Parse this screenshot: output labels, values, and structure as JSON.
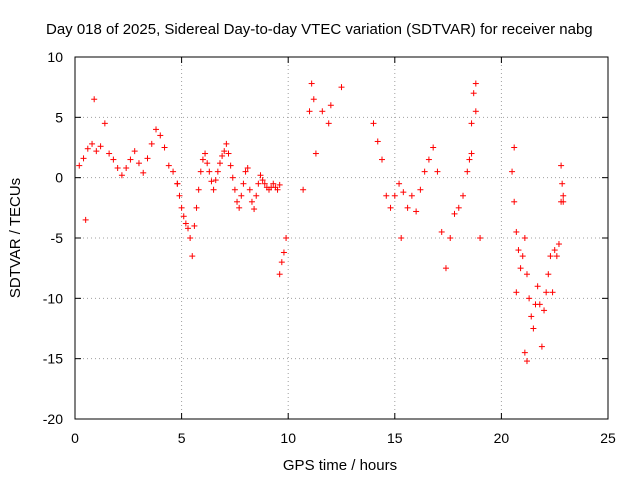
{
  "chart_data": {
    "type": "scatter",
    "title": "Day 018 of 2025, Sidereal Day-to-day VTEC variation (SDTVAR) for receiver nabg",
    "xlabel": "GPS time / hours",
    "ylabel": "SDTVAR / TECUs",
    "xlim": [
      0,
      25
    ],
    "ylim": [
      -20,
      10
    ],
    "xticks": [
      0,
      5,
      10,
      15,
      20,
      25
    ],
    "yticks": [
      10,
      5,
      0,
      -5,
      -10,
      -15,
      -20
    ],
    "grid": true,
    "marker": "plus",
    "color": "#ff0000",
    "series": [
      {
        "name": "SDTVAR",
        "segments": [
          {
            "x": [
              0.2,
              0.4,
              0.6,
              0.8,
              1.0,
              1.2,
              1.4,
              1.6,
              1.8,
              2.0,
              2.2,
              2.4,
              2.6,
              2.8,
              3.0,
              3.2,
              3.4,
              3.6,
              3.8,
              4.0,
              4.2,
              4.4,
              4.6,
              4.8
            ],
            "y": [
              1.0,
              1.6,
              2.4,
              2.8,
              2.2,
              2.6,
              4.5,
              2.0,
              1.5,
              0.8,
              0.2,
              0.8,
              1.5,
              2.2,
              1.2,
              0.4,
              1.6,
              2.8,
              4.0,
              3.5,
              2.5,
              1.0,
              0.5,
              -0.5
            ]
          },
          {
            "x": [
              0.5,
              0.9
            ],
            "y": [
              -3.5,
              6.5
            ]
          },
          {
            "x": [
              4.8,
              4.9,
              5.0,
              5.1,
              5.2,
              5.3,
              5.4,
              5.5,
              5.6,
              5.7,
              5.8,
              5.9,
              6.0,
              6.1,
              6.2,
              6.3,
              6.4,
              6.5,
              6.6,
              6.7,
              6.8,
              6.9,
              7.0,
              7.1,
              7.2,
              7.3,
              7.4,
              7.5,
              7.6,
              7.7,
              7.8,
              7.9,
              8.0,
              8.1,
              8.2,
              8.3,
              8.4,
              8.5,
              8.6,
              8.7,
              8.8,
              8.9,
              9.0,
              9.1,
              9.2,
              9.3,
              9.4,
              9.5,
              9.6
            ],
            "y": [
              -0.5,
              -1.5,
              -2.5,
              -3.2,
              -3.8,
              -4.2,
              -5.0,
              -6.5,
              -4.0,
              -2.5,
              -1.0,
              0.5,
              1.5,
              2.0,
              1.2,
              0.5,
              -0.3,
              -1.0,
              -0.2,
              0.5,
              1.2,
              1.8,
              2.2,
              2.8,
              2.0,
              1.0,
              0.0,
              -1.0,
              -2.0,
              -2.5,
              -1.5,
              -0.5,
              0.5,
              0.8,
              -1.0,
              -2.0,
              -2.6,
              -1.5,
              -0.5,
              0.2,
              -0.2,
              -0.5,
              -0.8,
              -1.0,
              -0.8,
              -0.5,
              -0.8,
              -1.0,
              -0.6
            ]
          },
          {
            "x": [
              9.6,
              9.7,
              9.8,
              9.9
            ],
            "y": [
              -8.0,
              -7.0,
              -6.2,
              -5.0
            ]
          },
          {
            "x": [
              10.7
            ],
            "y": [
              -1.0
            ]
          },
          {
            "x": [
              11.0,
              11.1,
              11.2,
              11.3,
              11.6,
              11.9,
              12.0,
              12.5
            ],
            "y": [
              5.5,
              7.8,
              6.5,
              2.0,
              5.5,
              4.5,
              6.0,
              7.5
            ]
          },
          {
            "x": [
              14.0,
              14.2,
              14.4,
              14.6,
              14.8,
              15.0,
              15.2,
              15.4,
              15.6,
              15.8,
              16.0,
              16.2,
              16.4,
              16.6,
              16.8,
              17.0,
              17.2,
              17.4,
              17.6,
              17.8,
              18.0,
              18.2,
              18.4,
              18.6,
              18.8
            ],
            "y": [
              4.5,
              3.0,
              1.5,
              -1.5,
              -2.5,
              -1.5,
              -0.5,
              -1.2,
              -2.5,
              -1.5,
              -2.8,
              -1.0,
              0.5,
              1.5,
              2.5,
              0.5,
              -4.5,
              -7.5,
              -5.0,
              -3.0,
              -2.5,
              -1.5,
              0.5,
              2.0,
              5.5
            ]
          },
          {
            "x": [
              18.5,
              18.6,
              18.7,
              18.8
            ],
            "y": [
              1.5,
              4.5,
              7.0,
              7.8
            ]
          },
          {
            "x": [
              15.3,
              19.0
            ],
            "y": [
              -5.0,
              -5.0
            ]
          },
          {
            "x": [
              20.5,
              20.6,
              20.7,
              20.8,
              20.9,
              21.0,
              21.1,
              21.2,
              21.3,
              21.4,
              21.5,
              21.6,
              21.7,
              21.8,
              21.9,
              22.0,
              22.1,
              22.2,
              22.3,
              22.4,
              22.5,
              22.6,
              22.7,
              22.8,
              22.9
            ],
            "y": [
              0.5,
              -2.0,
              -4.5,
              -6.0,
              -7.5,
              -6.5,
              -5.0,
              -8.0,
              -10.0,
              -11.5,
              -12.5,
              -10.5,
              -9.0,
              -10.5,
              -14.0,
              -11.0,
              -9.5,
              -8.0,
              -6.5,
              -9.5,
              -6.0,
              -6.5,
              -5.5,
              -2.0,
              -1.5
            ]
          },
          {
            "x": [
              20.6,
              20.7
            ],
            "y": [
              2.5,
              -9.5
            ]
          },
          {
            "x": [
              21.1,
              21.2
            ],
            "y": [
              -14.5,
              -15.2
            ]
          },
          {
            "x": [
              22.8,
              22.85,
              22.9
            ],
            "y": [
              1.0,
              -0.5,
              -2.0
            ]
          }
        ]
      }
    ]
  }
}
